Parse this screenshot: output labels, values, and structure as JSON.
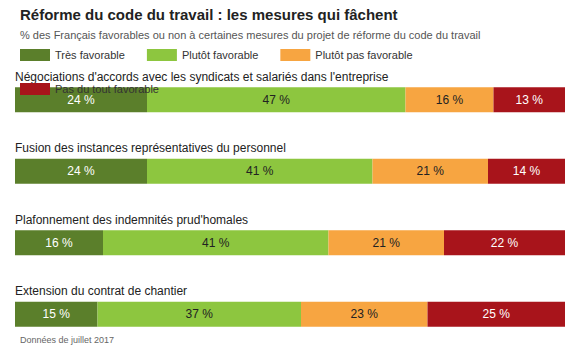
{
  "chart_data": {
    "type": "bar",
    "orientation": "horizontal",
    "stacked": true,
    "title": "Réforme du code du travail : les mesures qui fâchent",
    "subtitle": "% des Français favorables ou non à certaines mesures du projet de réforme du code du travail",
    "annotation": "Données de juillet 2017",
    "categories": [
      "Négociations d'accords avec les syndicats et salariés dans l'entreprise",
      "Fusion des instances représentatives du personnel",
      "Plafonnement des indemnités prud'homales",
      "Extension du contrat de chantier"
    ],
    "series": [
      {
        "name": "Très favorable",
        "color": "#5b7f2b",
        "values": [
          24,
          24,
          16,
          15
        ],
        "value_labels": [
          "24 %",
          "24 %",
          "16 %",
          "15 %"
        ]
      },
      {
        "name": "Plutôt favorable",
        "color": "#8dc63f",
        "values": [
          47,
          41,
          41,
          37
        ],
        "value_labels": [
          "47 %",
          "41 %",
          "41 %",
          "37 %"
        ]
      },
      {
        "name": "Plutôt pas favorable",
        "color": "#f7a541",
        "values": [
          16,
          21,
          21,
          23
        ],
        "value_labels": [
          "16 %",
          "21 %",
          "21 %",
          "23 %"
        ]
      },
      {
        "name": "Pas du tout favorable",
        "color": "#a8141b",
        "values": [
          13,
          14,
          22,
          25
        ],
        "value_labels": [
          "13 %",
          "14 %",
          "22 %",
          "25 %"
        ]
      }
    ],
    "xlim": [
      0,
      100
    ],
    "data_labels": true,
    "tick_labels": false,
    "grid": false,
    "legend": "top-left"
  }
}
